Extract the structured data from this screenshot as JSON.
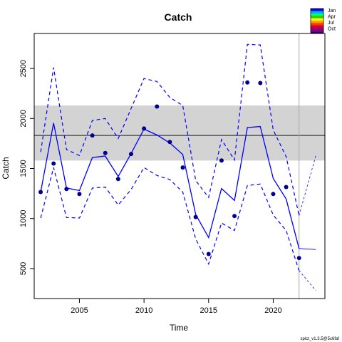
{
  "chart_data": {
    "type": "line",
    "title": "Catch",
    "xlabel": "Time",
    "ylabel": "Catch",
    "xlim": [
      2001.5,
      2024.0
    ],
    "ylim": [
      200,
      2850
    ],
    "x_ticks": [
      2005,
      2010,
      2015,
      2020
    ],
    "y_ticks": [
      500,
      1000,
      1500,
      2000,
      2500
    ],
    "grid": false,
    "shaded_band": {
      "lower": 1580,
      "upper": 2130,
      "color": "#d3d3d3"
    },
    "reference_line": {
      "value": 1830,
      "color": "#555555"
    },
    "vertical_line": {
      "x": 2022.0,
      "color": "#aaaaaa"
    },
    "observed": {
      "x": [
        2002,
        2003,
        2004,
        2005,
        2006,
        2007,
        2008,
        2009,
        2010,
        2011,
        2012,
        2013,
        2014,
        2015,
        2016,
        2017,
        2018,
        2019,
        2020,
        2021,
        2022
      ],
      "y": [
        1265,
        1550,
        1295,
        1245,
        1830,
        1655,
        1395,
        1645,
        1900,
        2120,
        1765,
        1510,
        1015,
        645,
        1580,
        1025,
        2360,
        2355,
        1245,
        1315,
        605
      ],
      "color": "#00008b"
    },
    "fitted": {
      "x": [
        2002,
        2003,
        2004,
        2005,
        2006,
        2007,
        2008,
        2009,
        2010,
        2011,
        2012,
        2013,
        2014,
        2015,
        2016,
        2017,
        2018,
        2019,
        2020,
        2021,
        2022
      ],
      "y": [
        1265,
        1955,
        1305,
        1280,
        1610,
        1625,
        1420,
        1650,
        1895,
        1835,
        1755,
        1640,
        1040,
        810,
        1300,
        1180,
        1910,
        1920,
        1400,
        1195,
        700
      ],
      "lower": [
        1005,
        1510,
        1010,
        1005,
        1305,
        1315,
        1135,
        1290,
        1510,
        1430,
        1390,
        1265,
        795,
        545,
        955,
        880,
        1330,
        1345,
        1035,
        880,
        480
      ],
      "upper": [
        1665,
        2510,
        1690,
        1630,
        1980,
        2000,
        1800,
        2100,
        2400,
        2370,
        2210,
        2130,
        1380,
        1210,
        1790,
        1585,
        2740,
        2735,
        1885,
        1620,
        1030
      ],
      "color": "#0000ff"
    },
    "forecast": {
      "x": [
        2022,
        2023.3
      ],
      "y": [
        700,
        690
      ],
      "lower": [
        480,
        280
      ],
      "upper": [
        1030,
        1630
      ],
      "color": "#0000ff"
    },
    "legend": {
      "placement": "top-right",
      "entries": [
        "Jan",
        "Apr",
        "Jul",
        "Oct"
      ],
      "gradient_colors": [
        "#0000ff",
        "#00aaff",
        "#00ff66",
        "#33cc00",
        "#ffff00",
        "#ff9900",
        "#ff3300",
        "#cc0033",
        "#990066",
        "#660099"
      ]
    }
  },
  "footer": "spict_v1.3.5@5c6faf"
}
